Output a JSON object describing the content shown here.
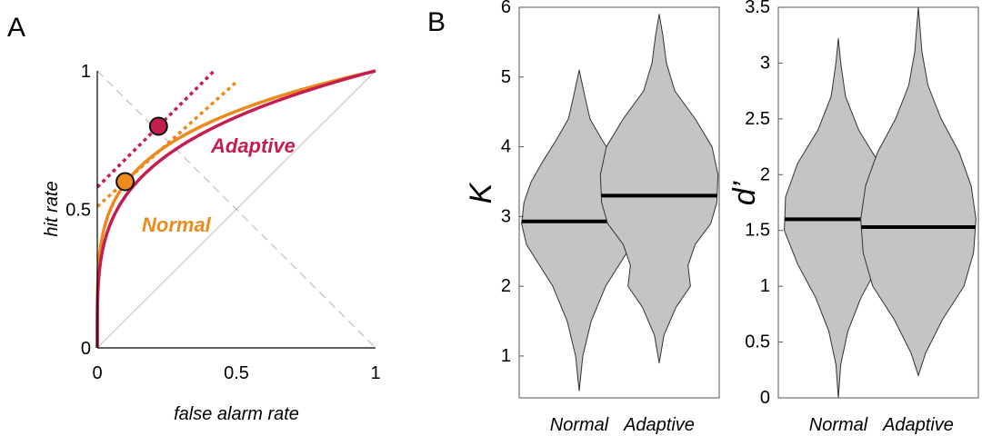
{
  "panels": {
    "a": "A",
    "b": "B"
  },
  "colors": {
    "adaptive": "#c41e4f",
    "normal": "#ec8a1c",
    "violin_fill": "#c4c4c4",
    "diagonal": "#bdbdbd"
  },
  "chart_data": [
    {
      "type": "line",
      "panel": "A",
      "xlabel": "false alarm rate",
      "ylabel": "hit rate",
      "xlim": [
        0,
        1
      ],
      "ylim": [
        0,
        1
      ],
      "xticks": [
        "0",
        "0.5",
        "1"
      ],
      "yticks": [
        "0",
        "0.5",
        "1"
      ],
      "grid": false,
      "series": [
        {
          "name": "Adaptive",
          "curve": "power",
          "exponent": 0.263,
          "point": {
            "x": 0.22,
            "y": 0.8
          }
        },
        {
          "name": "Normal",
          "curve": "power",
          "exponent": 0.227,
          "point": {
            "x": 0.1,
            "y": 0.6
          }
        }
      ],
      "tangents": [
        {
          "series": "Adaptive",
          "intercept": 0.58,
          "slope": 1.0,
          "x_range": [
            0,
            0.42
          ]
        },
        {
          "series": "Normal",
          "intercept": 0.51,
          "slope": 0.9,
          "x_range": [
            0,
            0.5
          ]
        }
      ],
      "reference_lines": [
        "chance diagonal",
        "negative diagonal"
      ]
    },
    {
      "type": "violin",
      "panel": "B",
      "ylabel": "K",
      "ylim": [
        0.4,
        6
      ],
      "yticks": [
        "1",
        "2",
        "3",
        "4",
        "5",
        "6"
      ],
      "categories": [
        "Normal",
        "Adaptive"
      ],
      "medians": [
        2.93,
        3.3
      ],
      "violins": [
        {
          "name": "Normal",
          "y": [
            0.5,
            1.0,
            1.5,
            2.0,
            2.3,
            2.6,
            2.9,
            3.2,
            3.5,
            3.8,
            4.1,
            4.4,
            4.7,
            5.1
          ],
          "half_width": [
            0.0,
            0.03,
            0.1,
            0.22,
            0.33,
            0.44,
            0.48,
            0.46,
            0.4,
            0.3,
            0.19,
            0.09,
            0.05,
            0.0
          ]
        },
        {
          "name": "Adaptive",
          "y": [
            0.9,
            1.3,
            1.7,
            2.0,
            2.3,
            2.6,
            2.9,
            3.2,
            3.6,
            4.0,
            4.4,
            4.8,
            5.2,
            5.6,
            5.9
          ],
          "half_width": [
            0.0,
            0.04,
            0.14,
            0.26,
            0.24,
            0.3,
            0.43,
            0.48,
            0.49,
            0.44,
            0.3,
            0.13,
            0.06,
            0.03,
            0.0
          ]
        }
      ]
    },
    {
      "type": "violin",
      "panel": "B",
      "ylabel": "d’",
      "ylim": [
        0,
        3.5
      ],
      "yticks": [
        "0",
        "0.5",
        "1",
        "1.5",
        "2",
        "2.5",
        "3",
        "3.5"
      ],
      "categories": [
        "Normal",
        "Adaptive"
      ],
      "medians": [
        1.6,
        1.53
      ],
      "violins": [
        {
          "name": "Normal",
          "y": [
            0.0,
            0.3,
            0.6,
            0.9,
            1.2,
            1.5,
            1.8,
            2.1,
            2.4,
            2.7,
            3.0,
            3.22
          ],
          "half_width": [
            0.0,
            0.02,
            0.08,
            0.19,
            0.34,
            0.45,
            0.44,
            0.34,
            0.17,
            0.06,
            0.02,
            0.0
          ]
        },
        {
          "name": "Adaptive",
          "y": [
            0.2,
            0.4,
            0.7,
            1.0,
            1.3,
            1.6,
            1.9,
            2.2,
            2.5,
            2.8,
            3.1,
            3.5
          ],
          "half_width": [
            0.0,
            0.06,
            0.2,
            0.38,
            0.46,
            0.48,
            0.44,
            0.34,
            0.19,
            0.08,
            0.03,
            0.0
          ]
        }
      ]
    }
  ]
}
